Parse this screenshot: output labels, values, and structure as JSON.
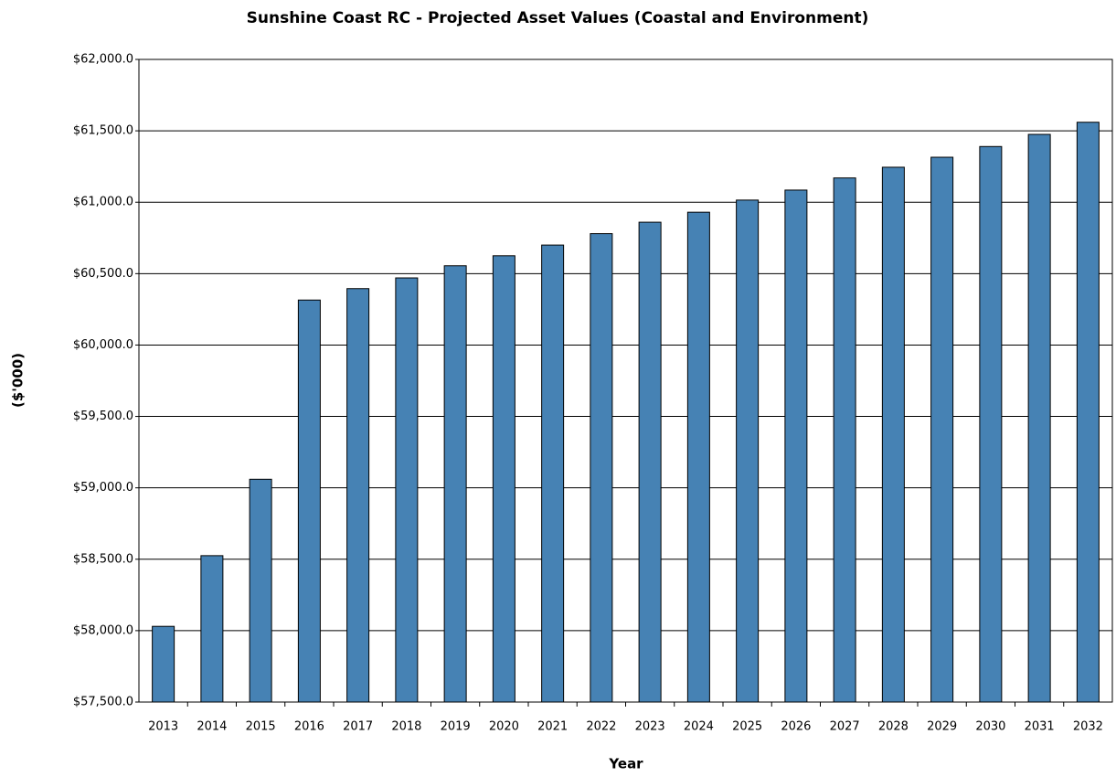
{
  "chart_data": {
    "type": "bar",
    "title": "Sunshine Coast RC - Projected Asset Values (Coastal and Environment)",
    "x_label": "Year",
    "y_label": "($'000)",
    "categories": [
      "2013",
      "2014",
      "2015",
      "2016",
      "2017",
      "2018",
      "2019",
      "2020",
      "2021",
      "2022",
      "2023",
      "2024",
      "2025",
      "2026",
      "2027",
      "2028",
      "2029",
      "2030",
      "2031",
      "2032"
    ],
    "values": [
      58030,
      58525,
      59060,
      60315,
      60395,
      60470,
      60555,
      60625,
      60700,
      60780,
      60860,
      60930,
      61015,
      61085,
      61170,
      61245,
      61315,
      61390,
      61475,
      61560
    ],
    "color": "#4682b4",
    "ylim": [
      57500,
      62000
    ],
    "yticks": [
      {
        "value": 57500,
        "label": "$57,500.0"
      },
      {
        "value": 58000,
        "label": "$58,000.0"
      },
      {
        "value": 58500,
        "label": "$58,500.0"
      },
      {
        "value": 59000,
        "label": "$59,000.0"
      },
      {
        "value": 59500,
        "label": "$59,500.0"
      },
      {
        "value": 60000,
        "label": "$60,000.0"
      },
      {
        "value": 60500,
        "label": "$60,500.0"
      },
      {
        "value": 61000,
        "label": "$61,000.0"
      },
      {
        "value": 61500,
        "label": "$61,500.0"
      },
      {
        "value": 62000,
        "label": "$62,000.0"
      }
    ],
    "grid": true
  }
}
